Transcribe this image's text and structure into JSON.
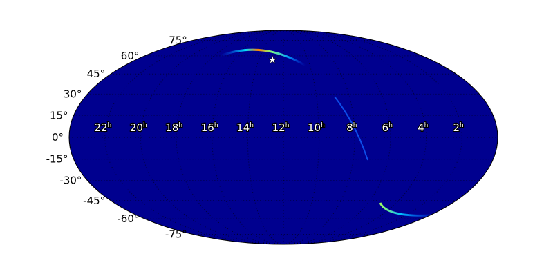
{
  "chart_data": {
    "type": "heatmap",
    "projection": "mollweide",
    "background_color": "#00008f",
    "grid": true,
    "lat_ticks": [
      "75°",
      "60°",
      "45°",
      "30°",
      "15°",
      "0°",
      "-15°",
      "-30°",
      "-45°",
      "-60°",
      "-75°"
    ],
    "lat_values": [
      75,
      60,
      45,
      30,
      15,
      0,
      -15,
      -30,
      -45,
      -60,
      -75
    ],
    "ra_ticks": [
      "22",
      "20",
      "18",
      "16",
      "14",
      "12",
      "10",
      "8",
      "6",
      "4",
      "2"
    ],
    "ra_values": [
      22,
      20,
      18,
      16,
      14,
      12,
      10,
      8,
      6,
      4,
      2
    ],
    "ra_unit": "h",
    "marker": {
      "type": "star",
      "ra_hours": 12.9,
      "dec_deg": 57,
      "color": "#ffffff"
    }
  }
}
